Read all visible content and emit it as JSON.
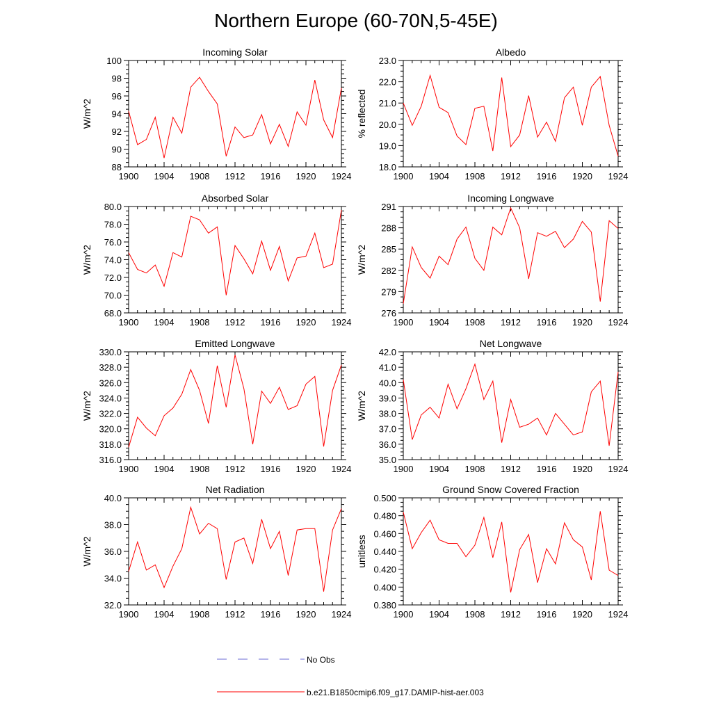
{
  "title": "Northern Europe (60-70N,5-45E)",
  "colors": {
    "model_line": "#ff0000",
    "obs_line": "#6b6bd6"
  },
  "legend": {
    "obs_label": "No Obs",
    "model_label": "b.e21.B1850cmip6.f09_g17.DAMIP-hist-aer.003"
  },
  "chart_data": [
    {
      "type": "line",
      "title": "Incoming Solar",
      "ylabel": "W/m^2",
      "xlim": [
        1900,
        1924
      ],
      "ylim": [
        88,
        100
      ],
      "xticks": [
        1900,
        1904,
        1908,
        1912,
        1916,
        1920,
        1924
      ],
      "xtick_labels": [
        "1900",
        "1904",
        "1908",
        "1912",
        "1916",
        "1920",
        "1924"
      ],
      "yticks": [
        88,
        90,
        92,
        94,
        96,
        98,
        100
      ],
      "ytick_labels": [
        "88",
        "90",
        "92",
        "94",
        "96",
        "98",
        "100"
      ],
      "x": [
        1900,
        1901,
        1902,
        1903,
        1904,
        1905,
        1906,
        1907,
        1908,
        1909,
        1910,
        1911,
        1912,
        1913,
        1914,
        1915,
        1916,
        1917,
        1918,
        1919,
        1920,
        1921,
        1922,
        1923,
        1924
      ],
      "series": [
        {
          "values": [
            94.3,
            90.5,
            91.1,
            93.6,
            89.0,
            93.6,
            91.8,
            97.0,
            98.1,
            96.5,
            95.1,
            89.2,
            92.5,
            91.3,
            91.6,
            93.9,
            90.6,
            92.8,
            90.3,
            94.2,
            92.7,
            97.8,
            93.3,
            91.3,
            96.9
          ]
        }
      ]
    },
    {
      "type": "line",
      "title": "Albedo",
      "ylabel": "% reflected",
      "xlim": [
        1900,
        1924
      ],
      "ylim": [
        18.0,
        23.0
      ],
      "xticks": [
        1900,
        1904,
        1908,
        1912,
        1916,
        1920,
        1924
      ],
      "xtick_labels": [
        "1900",
        "1904",
        "1908",
        "1912",
        "1916",
        "1920",
        "1924"
      ],
      "yticks": [
        18,
        19,
        20,
        21,
        22,
        23
      ],
      "ytick_labels": [
        "18.0",
        "19.0",
        "20.0",
        "21.0",
        "22.0",
        "23.0"
      ],
      "x": [
        1900,
        1901,
        1902,
        1903,
        1904,
        1905,
        1906,
        1907,
        1908,
        1909,
        1910,
        1911,
        1912,
        1913,
        1914,
        1915,
        1916,
        1917,
        1918,
        1919,
        1920,
        1921,
        1922,
        1923,
        1924
      ],
      "series": [
        {
          "values": [
            21.0,
            19.95,
            20.85,
            22.3,
            20.8,
            20.55,
            19.45,
            19.05,
            20.75,
            20.85,
            18.75,
            22.2,
            18.95,
            19.5,
            21.35,
            19.4,
            20.1,
            19.2,
            21.25,
            21.75,
            19.95,
            21.75,
            22.25,
            19.95,
            18.5
          ]
        }
      ]
    },
    {
      "type": "line",
      "title": "Absorbed Solar",
      "ylabel": "W/m^2",
      "xlim": [
        1900,
        1924
      ],
      "ylim": [
        68.0,
        80.0
      ],
      "xticks": [
        1900,
        1904,
        1908,
        1912,
        1916,
        1920,
        1924
      ],
      "xtick_labels": [
        "1900",
        "1904",
        "1908",
        "1912",
        "1916",
        "1920",
        "1924"
      ],
      "yticks": [
        68,
        70,
        72,
        74,
        76,
        78,
        80
      ],
      "ytick_labels": [
        "68.0",
        "70.0",
        "72.0",
        "74.0",
        "76.0",
        "78.0",
        "80.0"
      ],
      "x": [
        1900,
        1901,
        1902,
        1903,
        1904,
        1905,
        1906,
        1907,
        1908,
        1909,
        1910,
        1911,
        1912,
        1913,
        1914,
        1915,
        1916,
        1917,
        1918,
        1919,
        1920,
        1921,
        1922,
        1923,
        1924
      ],
      "series": [
        {
          "values": [
            74.8,
            72.9,
            72.5,
            73.4,
            71.0,
            74.8,
            74.3,
            78.9,
            78.5,
            77.0,
            77.7,
            70.0,
            75.6,
            74.1,
            72.4,
            76.1,
            72.8,
            75.5,
            71.6,
            74.2,
            74.4,
            77.0,
            73.1,
            73.5,
            79.6
          ]
        }
      ]
    },
    {
      "type": "line",
      "title": "Incoming Longwave",
      "ylabel": "W/m^2",
      "xlim": [
        1900,
        1924
      ],
      "ylim": [
        276,
        291
      ],
      "xticks": [
        1900,
        1904,
        1908,
        1912,
        1916,
        1920,
        1924
      ],
      "xtick_labels": [
        "1900",
        "1904",
        "1908",
        "1912",
        "1916",
        "1920",
        "1924"
      ],
      "yticks": [
        276,
        279,
        282,
        285,
        288,
        291
      ],
      "ytick_labels": [
        "276",
        "279",
        "282",
        "285",
        "288",
        "291"
      ],
      "x": [
        1900,
        1901,
        1902,
        1903,
        1904,
        1905,
        1906,
        1907,
        1908,
        1909,
        1910,
        1911,
        1912,
        1913,
        1914,
        1915,
        1916,
        1917,
        1918,
        1919,
        1920,
        1921,
        1922,
        1923,
        1924
      ],
      "series": [
        {
          "values": [
            277.3,
            285.3,
            282.4,
            280.9,
            284.0,
            282.8,
            286.4,
            288.1,
            283.7,
            282.0,
            288.1,
            287.0,
            290.8,
            288.0,
            280.8,
            287.3,
            286.8,
            287.5,
            285.2,
            286.4,
            288.9,
            287.4,
            277.6,
            289.0,
            287.9
          ]
        }
      ]
    },
    {
      "type": "line",
      "title": "Emitted Longwave",
      "ylabel": "W/m^2",
      "xlim": [
        1900,
        1924
      ],
      "ylim": [
        316.0,
        330.0
      ],
      "xticks": [
        1900,
        1904,
        1908,
        1912,
        1916,
        1920,
        1924
      ],
      "xtick_labels": [
        "1900",
        "1904",
        "1908",
        "1912",
        "1916",
        "1920",
        "1924"
      ],
      "yticks": [
        316,
        318,
        320,
        322,
        324,
        326,
        328,
        330
      ],
      "ytick_labels": [
        "316.0",
        "318.0",
        "320.0",
        "322.0",
        "324.0",
        "326.0",
        "328.0",
        "330.0"
      ],
      "x": [
        1900,
        1901,
        1902,
        1903,
        1904,
        1905,
        1906,
        1907,
        1908,
        1909,
        1910,
        1911,
        1912,
        1913,
        1914,
        1915,
        1916,
        1917,
        1918,
        1919,
        1920,
        1921,
        1922,
        1923,
        1924
      ],
      "series": [
        {
          "values": [
            317.6,
            321.5,
            320.1,
            319.1,
            321.7,
            322.7,
            324.5,
            327.7,
            325.0,
            320.7,
            328.2,
            322.8,
            329.6,
            325.2,
            318.0,
            324.9,
            323.3,
            325.4,
            322.5,
            323.0,
            325.8,
            326.8,
            317.7,
            325.0,
            328.3
          ]
        }
      ]
    },
    {
      "type": "line",
      "title": "Net Longwave",
      "ylabel": "W/m^2",
      "xlim": [
        1900,
        1924
      ],
      "ylim": [
        35.0,
        42.0
      ],
      "xticks": [
        1900,
        1904,
        1908,
        1912,
        1916,
        1920,
        1924
      ],
      "xtick_labels": [
        "1900",
        "1904",
        "1908",
        "1912",
        "1916",
        "1920",
        "1924"
      ],
      "yticks": [
        35,
        36,
        37,
        38,
        39,
        40,
        41,
        42
      ],
      "ytick_labels": [
        "35.0",
        "36.0",
        "37.0",
        "38.0",
        "39.0",
        "40.0",
        "41.0",
        "42.0"
      ],
      "x": [
        1900,
        1901,
        1902,
        1903,
        1904,
        1905,
        1906,
        1907,
        1908,
        1909,
        1910,
        1911,
        1912,
        1913,
        1914,
        1915,
        1916,
        1917,
        1918,
        1919,
        1920,
        1921,
        1922,
        1923,
        1924
      ],
      "series": [
        {
          "values": [
            40.2,
            36.3,
            37.9,
            38.4,
            37.7,
            39.9,
            38.3,
            39.6,
            41.2,
            38.9,
            40.1,
            36.1,
            38.9,
            37.1,
            37.3,
            37.7,
            36.6,
            38.0,
            37.3,
            36.6,
            36.8,
            39.4,
            40.1,
            35.9,
            40.7
          ]
        }
      ]
    },
    {
      "type": "line",
      "title": "Net Radiation",
      "ylabel": "W/m^2",
      "xlim": [
        1900,
        1924
      ],
      "ylim": [
        32.0,
        40.0
      ],
      "xticks": [
        1900,
        1904,
        1908,
        1912,
        1916,
        1920,
        1924
      ],
      "xtick_labels": [
        "1900",
        "1904",
        "1908",
        "1912",
        "1916",
        "1920",
        "1924"
      ],
      "yticks": [
        32,
        34,
        36,
        38,
        40
      ],
      "ytick_labels": [
        "32.0",
        "34.0",
        "36.0",
        "38.0",
        "40.0"
      ],
      "x": [
        1900,
        1901,
        1902,
        1903,
        1904,
        1905,
        1906,
        1907,
        1908,
        1909,
        1910,
        1911,
        1912,
        1913,
        1914,
        1915,
        1916,
        1917,
        1918,
        1919,
        1920,
        1921,
        1922,
        1923,
        1924
      ],
      "series": [
        {
          "values": [
            34.5,
            36.7,
            34.6,
            35.0,
            33.3,
            34.9,
            36.2,
            39.3,
            37.3,
            38.1,
            37.7,
            33.9,
            36.7,
            37.0,
            35.1,
            38.4,
            36.2,
            37.5,
            34.2,
            37.6,
            37.7,
            37.7,
            33.0,
            37.6,
            39.2
          ]
        }
      ]
    },
    {
      "type": "line",
      "title": "Ground Snow Covered Fraction",
      "ylabel": "unitless",
      "xlim": [
        1900,
        1924
      ],
      "ylim": [
        0.38,
        0.5
      ],
      "xticks": [
        1900,
        1904,
        1908,
        1912,
        1916,
        1920,
        1924
      ],
      "xtick_labels": [
        "1900",
        "1904",
        "1908",
        "1912",
        "1916",
        "1920",
        "1924"
      ],
      "yticks": [
        0.38,
        0.4,
        0.42,
        0.44,
        0.46,
        0.48,
        0.5
      ],
      "ytick_labels": [
        "0.380",
        "0.400",
        "0.420",
        "0.440",
        "0.460",
        "0.480",
        "0.500"
      ],
      "x": [
        1900,
        1901,
        1902,
        1903,
        1904,
        1905,
        1906,
        1907,
        1908,
        1909,
        1910,
        1911,
        1912,
        1913,
        1914,
        1915,
        1916,
        1917,
        1918,
        1919,
        1920,
        1921,
        1922,
        1923,
        1924
      ],
      "series": [
        {
          "values": [
            0.484,
            0.443,
            0.461,
            0.475,
            0.453,
            0.449,
            0.449,
            0.434,
            0.447,
            0.478,
            0.433,
            0.473,
            0.394,
            0.442,
            0.459,
            0.405,
            0.443,
            0.426,
            0.472,
            0.453,
            0.445,
            0.408,
            0.485,
            0.419,
            0.413
          ]
        }
      ]
    }
  ]
}
